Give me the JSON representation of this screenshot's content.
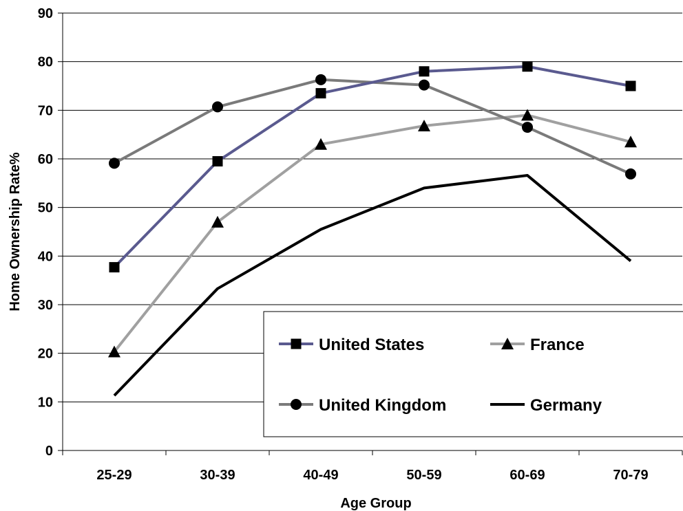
{
  "chart_data": {
    "type": "line",
    "title": "",
    "xlabel": "Age Group",
    "ylabel": "Home Ownership Rate%",
    "ylim": [
      0,
      90
    ],
    "yticks": [
      0,
      10,
      20,
      30,
      40,
      50,
      60,
      70,
      80,
      90
    ],
    "grid": "horizontal",
    "legend_position": "bottom-right",
    "categories": [
      "25-29",
      "30-39",
      "40-49",
      "50-59",
      "60-69",
      "70-79"
    ],
    "series": [
      {
        "name": "United States",
        "values": [
          37.7,
          59.5,
          73.5,
          78.0,
          79.0,
          75.0
        ],
        "color": "#5a5a8f",
        "marker": "square"
      },
      {
        "name": "France",
        "values": [
          20.3,
          47.0,
          63.0,
          66.8,
          69.0,
          63.5
        ],
        "color": "#a0a0a0",
        "marker": "triangle"
      },
      {
        "name": "United Kingdom",
        "values": [
          59.1,
          70.7,
          76.3,
          75.2,
          66.5,
          56.9
        ],
        "color": "#7a7a7a",
        "marker": "circle"
      },
      {
        "name": "Germany",
        "values": [
          11.3,
          33.3,
          45.5,
          54.0,
          56.6,
          39.0
        ],
        "color": "#000000",
        "marker": "none"
      }
    ]
  }
}
